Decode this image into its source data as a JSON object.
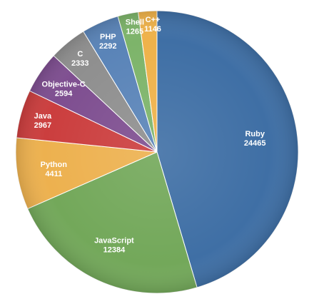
{
  "chart_data": {
    "type": "pie",
    "slices": [
      {
        "label": "Ruby",
        "value": 24465,
        "color": "#3F6FA5"
      },
      {
        "label": "JavaScript",
        "value": 12384,
        "color": "#73A85A"
      },
      {
        "label": "Python",
        "value": 4411,
        "color": "#EDB14F"
      },
      {
        "label": "Java",
        "value": 2967,
        "color": "#CB3E3E"
      },
      {
        "label": "Objective-C",
        "value": 2594,
        "color": "#7E4E90"
      },
      {
        "label": "C",
        "value": 2333,
        "color": "#8F8F8F"
      },
      {
        "label": "PHP",
        "value": 2292,
        "color": "#5A84B8"
      },
      {
        "label": "Shell",
        "value": 1265,
        "color": "#7DB46A"
      },
      {
        "label": "C++",
        "value": 1146,
        "color": "#EFB24A"
      }
    ],
    "start_angle": "12 o'clock",
    "direction": "clockwise",
    "legend": "none",
    "labels": "on-slice name and value"
  }
}
